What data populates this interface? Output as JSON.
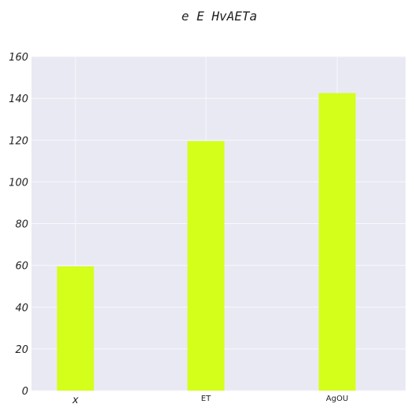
{
  "chart_data": {
    "type": "bar",
    "title": "e E HvAETa",
    "xlabel": "",
    "ylabel": "",
    "categories": [
      "x",
      "ET",
      "AgOU"
    ],
    "values": [
      59.5,
      119.5,
      142.5
    ],
    "ylim": [
      0,
      160
    ],
    "yticks": [
      0,
      20,
      40,
      60,
      80,
      100,
      120,
      140,
      160
    ],
    "grid": true,
    "legend": "none",
    "colors": {
      "bar": "#d4ff1a",
      "plot_background": "#e9e9f3",
      "grid": "#f8f8fc"
    }
  }
}
